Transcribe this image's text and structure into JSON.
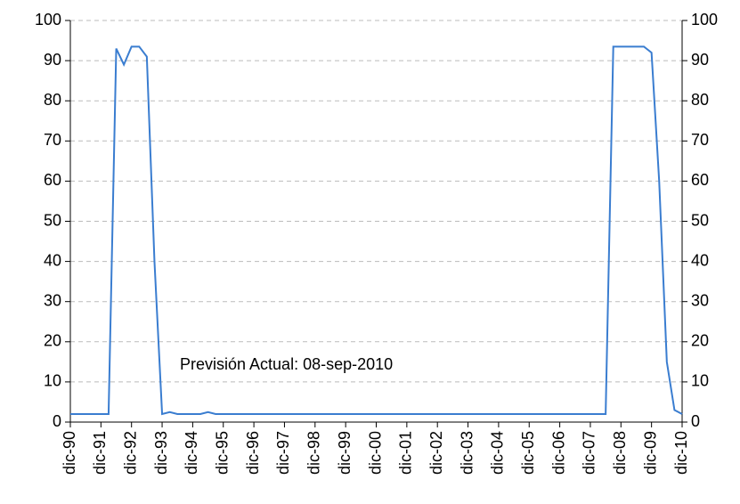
{
  "chart_data": {
    "type": "line",
    "annotation": "Previsión Actual:  08-sep-2010",
    "categories": [
      "dic-90",
      null,
      null,
      null,
      "dic-91",
      null,
      null,
      null,
      "dic-92",
      null,
      null,
      null,
      "dic-93",
      null,
      null,
      null,
      "dic-94",
      null,
      null,
      null,
      "dic-95",
      null,
      null,
      null,
      "dic-96",
      null,
      null,
      null,
      "dic-97",
      null,
      null,
      null,
      "dic-98",
      null,
      null,
      null,
      "dic-99",
      null,
      null,
      null,
      "dic-00",
      null,
      null,
      null,
      "dic-01",
      null,
      null,
      null,
      "dic-02",
      null,
      null,
      null,
      "dic-03",
      null,
      null,
      null,
      "dic-04",
      null,
      null,
      null,
      "dic-05",
      null,
      null,
      null,
      "dic-06",
      null,
      null,
      null,
      "dic-07",
      null,
      null,
      null,
      "dic-08",
      null,
      null,
      null,
      "dic-09",
      null,
      null,
      null,
      "dic-10"
    ],
    "series": [
      {
        "color": "#3a7dd0",
        "values": [
          2,
          2,
          2,
          2,
          2,
          2,
          93,
          89,
          93.5,
          93.5,
          91,
          40,
          2,
          2.5,
          2,
          2,
          2,
          2,
          2.5,
          2,
          2,
          2,
          2,
          2,
          2,
          2,
          2,
          2,
          2,
          2,
          2,
          2,
          2,
          2,
          2,
          2,
          2,
          2,
          2,
          2,
          2,
          2,
          2,
          2,
          2,
          2,
          2,
          2,
          2,
          2,
          2,
          2,
          2,
          2,
          2,
          2,
          2,
          2,
          2,
          2,
          2,
          2,
          2,
          2,
          2,
          2,
          2,
          2,
          2,
          2,
          2,
          93.5,
          93.5,
          93.5,
          93.5,
          93.5,
          92,
          60,
          15,
          3,
          2
        ]
      }
    ],
    "ylim": [
      0,
      100
    ],
    "yticks": [
      0,
      10,
      20,
      30,
      40,
      50,
      60,
      70,
      80,
      90,
      100
    ],
    "y2lim": [
      0,
      100
    ],
    "y2ticks": [
      0,
      10,
      20,
      30,
      40,
      50,
      60,
      70,
      80,
      90,
      100
    ],
    "grid": true
  }
}
